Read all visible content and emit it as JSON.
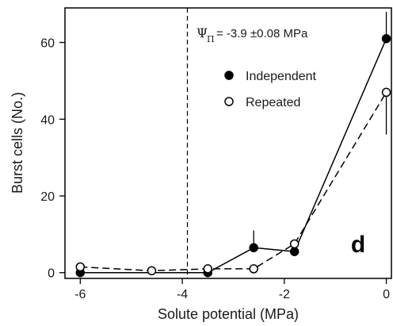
{
  "chart_data": {
    "type": "line",
    "xlabel": "Solute potential (MPa)",
    "ylabel": "Burst cells (No.)",
    "xlim": [
      -6.3,
      0.1
    ],
    "ylim": [
      -1.5,
      69
    ],
    "x_ticks": [
      -6,
      -4,
      -2,
      0
    ],
    "y_ticks": [
      0,
      20,
      40,
      60
    ],
    "grid": false,
    "legend_position": "top-right",
    "reference_line": {
      "x": -3.9,
      "style": "dashed"
    },
    "annotation": {
      "symbol": "Ψ",
      "subscript": "Π",
      "text": "= -3.9 ±0.08  MPa"
    },
    "panel_label": "d",
    "series": [
      {
        "name": "Independent",
        "marker": "filled-circle",
        "line_style": "solid",
        "x": [
          -6.0,
          -3.5,
          -2.6,
          -1.8,
          0.0
        ],
        "y": [
          0.0,
          0.0,
          6.5,
          5.5,
          61.0
        ],
        "error_up": [
          0,
          0,
          4.5,
          0,
          7.0
        ],
        "error_down": [
          0,
          0,
          0,
          0,
          0
        ]
      },
      {
        "name": "Repeated",
        "marker": "open-circle",
        "line_style": "dashed",
        "x": [
          -6.0,
          -4.6,
          -3.5,
          -2.6,
          -1.8,
          0.0
        ],
        "y": [
          1.5,
          0.5,
          1.0,
          1.0,
          7.5,
          47.0
        ],
        "error_up": [
          0,
          0,
          0,
          0,
          0,
          0
        ],
        "error_down": [
          0,
          0,
          0,
          0,
          0,
          11.0
        ]
      }
    ]
  }
}
